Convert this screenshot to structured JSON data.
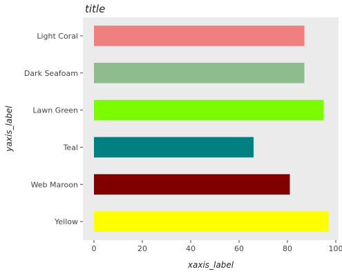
{
  "chart_data": {
    "type": "bar",
    "orientation": "horizontal",
    "title": "title",
    "xlabel": "xaxis_label",
    "ylabel": "yaxis_label",
    "categories": [
      "Yellow",
      "Web Maroon",
      "Teal",
      "Lawn Green",
      "Dark Seafoam",
      "Light Coral"
    ],
    "values": [
      97,
      81,
      66,
      95,
      87,
      87
    ],
    "colors": [
      "#ffff00",
      "#800000",
      "#008080",
      "#7cfc00",
      "#8fbc8f",
      "#f08080"
    ],
    "xlim": [
      0,
      100
    ],
    "xticks": [
      "0",
      "20",
      "40",
      "60",
      "80",
      "100"
    ],
    "grid": false,
    "background": "#ebebeb"
  }
}
